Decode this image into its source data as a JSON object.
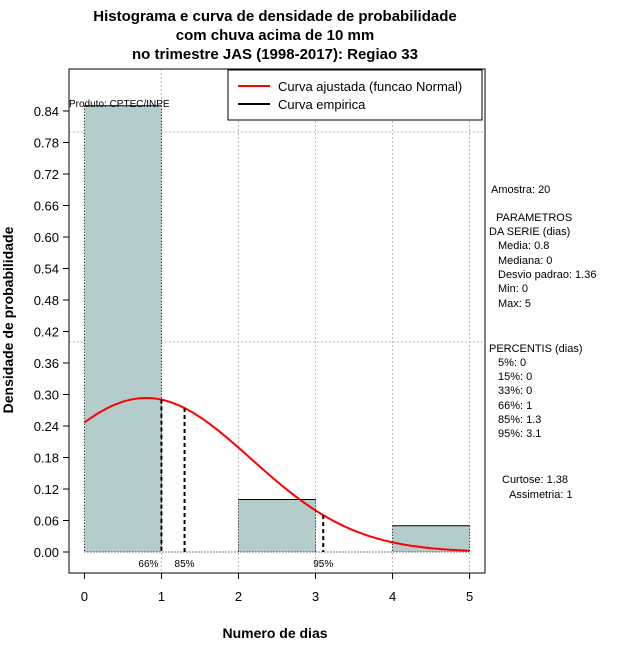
{
  "chart_data": {
    "type": "bar",
    "title_lines": [
      "Histograma e curva de densidade de probabilidade",
      "com chuva acima de 10 mm",
      "no trimestre JAS (1998-2017): Regiao 33"
    ],
    "xlabel": "Numero de dias",
    "ylabel": "Densidade de probabilidade",
    "xlim": [
      -0.2,
      5.2
    ],
    "ylim": [
      -0.04,
      0.92
    ],
    "x_ticks": [
      0,
      1,
      2,
      3,
      4,
      5
    ],
    "y_ticks": [
      0.0,
      0.06,
      0.12,
      0.18,
      0.24,
      0.3,
      0.36,
      0.42,
      0.48,
      0.54,
      0.6,
      0.66,
      0.72,
      0.78,
      0.84
    ],
    "y_tick_labels": [
      "0.00",
      "0.06",
      "0.12",
      "0.18",
      "0.24",
      "0.30",
      "0.36",
      "0.42",
      "0.48",
      "0.54",
      "0.60",
      "0.66",
      "0.72",
      "0.78",
      "0.84"
    ],
    "bins": [
      {
        "start": 0,
        "end": 1,
        "density": 0.85
      },
      {
        "start": 1,
        "end": 2,
        "density": 0.0
      },
      {
        "start": 2,
        "end": 3,
        "density": 0.1
      },
      {
        "start": 3,
        "end": 4,
        "density": 0.0
      },
      {
        "start": 4,
        "end": 5,
        "density": 0.05
      }
    ],
    "normal_fit": {
      "mean": 0.8,
      "sd": 1.36,
      "x_range": [
        0,
        5
      ]
    },
    "grid_y": [
      0.8,
      0.4
    ],
    "grid_x": [
      1,
      2,
      3,
      4,
      5
    ],
    "percentile_markers": [
      {
        "x": 1.0,
        "label": "66%"
      },
      {
        "x": 1.3,
        "label": "85%"
      },
      {
        "x": 3.1,
        "label": "95%"
      }
    ],
    "legend": [
      {
        "label": "Curva ajustada (funcao Normal)",
        "color": "#ff0000"
      },
      {
        "label": "Curva empirica",
        "color": "#000000"
      }
    ],
    "product_label": "Produto: CPTEC/INPE",
    "bar_color": "#b5cccc",
    "curve_color": "#ff0000"
  },
  "side_panel": {
    "sample": "Amostra: 20",
    "params_header_1": "PARAMETROS",
    "params_header_2": "DA SERIE (dias)",
    "media": "Media: 0.8",
    "mediana": "Mediana: 0",
    "desvio": "Desvio padrao: 1.36",
    "min": "Min: 0",
    "max": "Max: 5",
    "percentis_header": "PERCENTIS (dias)",
    "p5": "5%: 0",
    "p15": "15%: 0",
    "p33": "33%: 0",
    "p66": "66%: 1",
    "p85": "85%: 1.3",
    "p95": "95%: 3.1",
    "curtose": "Curtose: 1.38",
    "assimetria": "Assimetria: 1"
  }
}
